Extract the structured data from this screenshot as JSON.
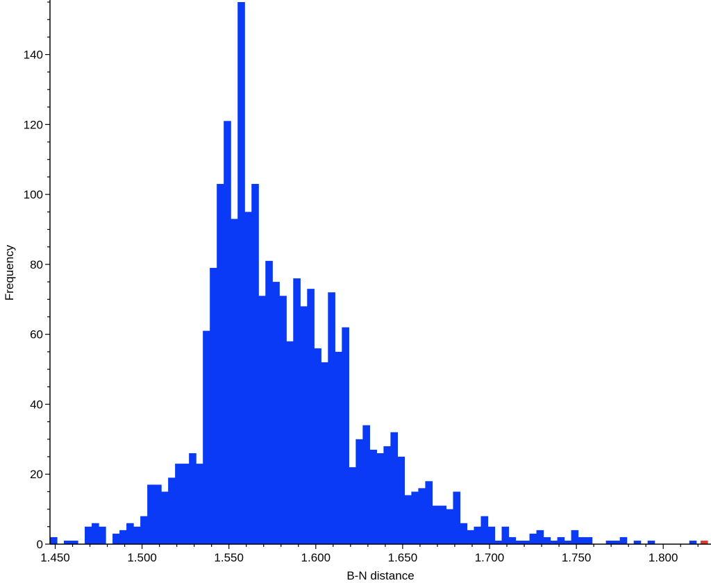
{
  "chart_data": {
    "type": "bar",
    "xlabel": "B-N distance",
    "ylabel": "Frequency",
    "xlim": [
      1.447,
      1.8255
    ],
    "ylim": [
      0,
      155
    ],
    "bin_width": 0.004,
    "x_ticks": [
      "1.450",
      "1.500",
      "1.550",
      "1.600",
      "1.650",
      "1.700",
      "1.750",
      "1.800"
    ],
    "y_ticks": [
      "0",
      "20",
      "40",
      "60",
      "80",
      "100",
      "120",
      "140"
    ],
    "grid": false,
    "colors": {
      "bars": "#0a3af5",
      "highlight": "#e53a2a"
    },
    "bins": [
      {
        "x": 1.449,
        "value": 2
      },
      {
        "x": 1.457,
        "value": 1
      },
      {
        "x": 1.461,
        "value": 1
      },
      {
        "x": 1.469,
        "value": 5
      },
      {
        "x": 1.473,
        "value": 6
      },
      {
        "x": 1.477,
        "value": 5
      },
      {
        "x": 1.485,
        "value": 3
      },
      {
        "x": 1.489,
        "value": 4
      },
      {
        "x": 1.493,
        "value": 6
      },
      {
        "x": 1.497,
        "value": 5
      },
      {
        "x": 1.501,
        "value": 8
      },
      {
        "x": 1.505,
        "value": 17
      },
      {
        "x": 1.509,
        "value": 17
      },
      {
        "x": 1.513,
        "value": 15
      },
      {
        "x": 1.517,
        "value": 19
      },
      {
        "x": 1.521,
        "value": 23
      },
      {
        "x": 1.525,
        "value": 23
      },
      {
        "x": 1.529,
        "value": 26
      },
      {
        "x": 1.533,
        "value": 23
      },
      {
        "x": 1.537,
        "value": 61
      },
      {
        "x": 1.541,
        "value": 79
      },
      {
        "x": 1.545,
        "value": 103
      },
      {
        "x": 1.549,
        "value": 121
      },
      {
        "x": 1.553,
        "value": 93
      },
      {
        "x": 1.557,
        "value": 155
      },
      {
        "x": 1.561,
        "value": 95
      },
      {
        "x": 1.565,
        "value": 103
      },
      {
        "x": 1.569,
        "value": 71
      },
      {
        "x": 1.573,
        "value": 81
      },
      {
        "x": 1.577,
        "value": 75
      },
      {
        "x": 1.581,
        "value": 71
      },
      {
        "x": 1.585,
        "value": 58
      },
      {
        "x": 1.589,
        "value": 76
      },
      {
        "x": 1.593,
        "value": 68
      },
      {
        "x": 1.597,
        "value": 73
      },
      {
        "x": 1.601,
        "value": 56
      },
      {
        "x": 1.605,
        "value": 52
      },
      {
        "x": 1.609,
        "value": 72
      },
      {
        "x": 1.613,
        "value": 55
      },
      {
        "x": 1.617,
        "value": 62
      },
      {
        "x": 1.621,
        "value": 22
      },
      {
        "x": 1.625,
        "value": 30
      },
      {
        "x": 1.629,
        "value": 34
      },
      {
        "x": 1.633,
        "value": 27
      },
      {
        "x": 1.637,
        "value": 26
      },
      {
        "x": 1.641,
        "value": 28
      },
      {
        "x": 1.645,
        "value": 32
      },
      {
        "x": 1.649,
        "value": 25
      },
      {
        "x": 1.653,
        "value": 14
      },
      {
        "x": 1.657,
        "value": 15
      },
      {
        "x": 1.661,
        "value": 16
      },
      {
        "x": 1.665,
        "value": 18
      },
      {
        "x": 1.669,
        "value": 11
      },
      {
        "x": 1.673,
        "value": 11
      },
      {
        "x": 1.677,
        "value": 10
      },
      {
        "x": 1.681,
        "value": 15
      },
      {
        "x": 1.685,
        "value": 6
      },
      {
        "x": 1.689,
        "value": 4
      },
      {
        "x": 1.693,
        "value": 5
      },
      {
        "x": 1.697,
        "value": 8
      },
      {
        "x": 1.701,
        "value": 5
      },
      {
        "x": 1.705,
        "value": 1
      },
      {
        "x": 1.709,
        "value": 5
      },
      {
        "x": 1.713,
        "value": 2
      },
      {
        "x": 1.717,
        "value": 1
      },
      {
        "x": 1.721,
        "value": 1
      },
      {
        "x": 1.725,
        "value": 3
      },
      {
        "x": 1.729,
        "value": 4
      },
      {
        "x": 1.733,
        "value": 2
      },
      {
        "x": 1.737,
        "value": 1
      },
      {
        "x": 1.741,
        "value": 2
      },
      {
        "x": 1.745,
        "value": 1
      },
      {
        "x": 1.749,
        "value": 4
      },
      {
        "x": 1.753,
        "value": 2
      },
      {
        "x": 1.757,
        "value": 2
      },
      {
        "x": 1.769,
        "value": 1
      },
      {
        "x": 1.773,
        "value": 1
      },
      {
        "x": 1.777,
        "value": 2
      },
      {
        "x": 1.785,
        "value": 1
      },
      {
        "x": 1.793,
        "value": 1
      },
      {
        "x": 1.817,
        "value": 1
      },
      {
        "x": 1.8235,
        "value": 1,
        "highlight": true
      }
    ]
  }
}
